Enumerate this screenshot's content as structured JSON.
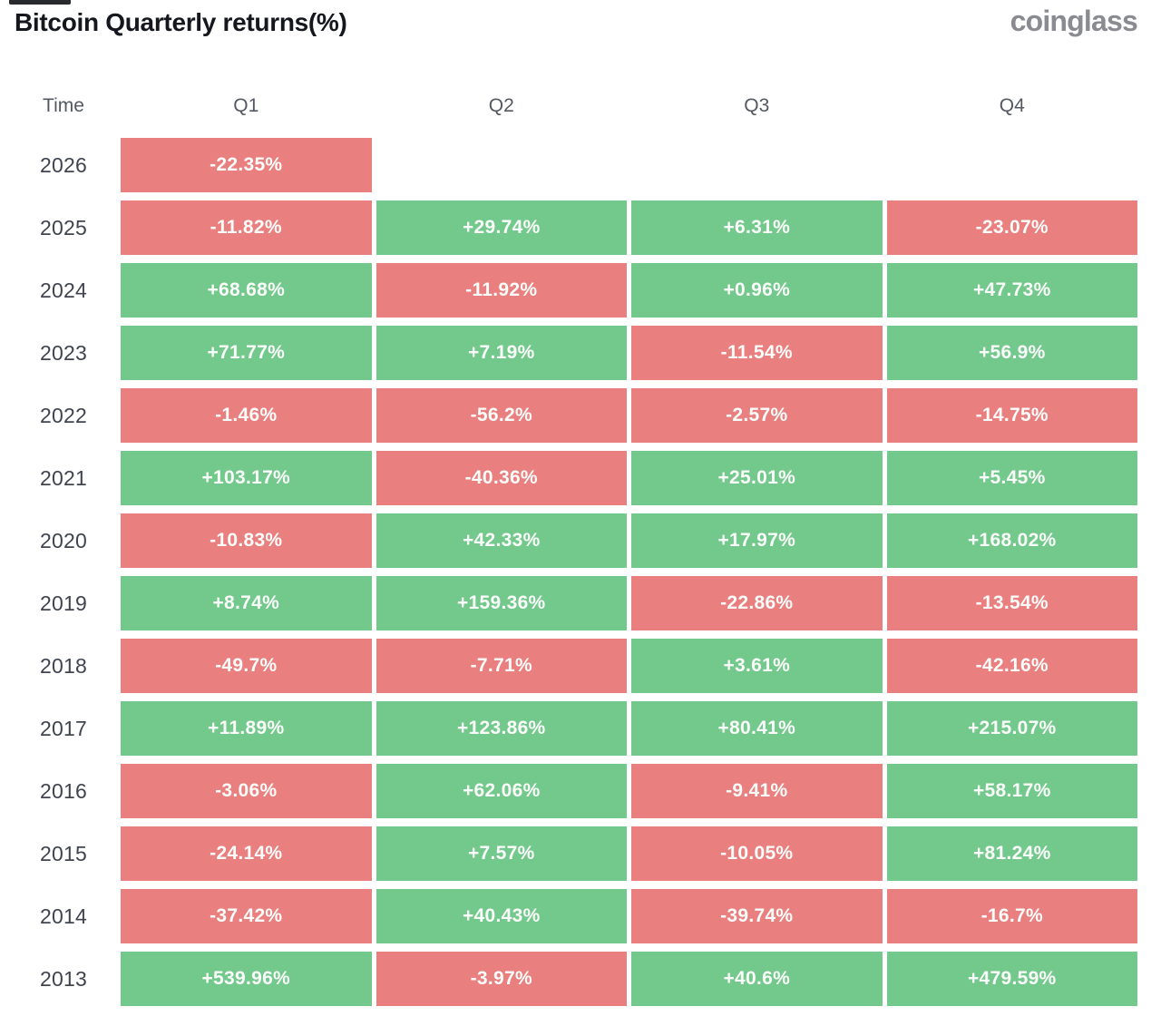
{
  "header": {
    "title": "Bitcoin Quarterly returns(%)",
    "brand": "coinglass"
  },
  "colors": {
    "positive_bg": "#73c98c",
    "negative_bg": "#e97f7f",
    "cell_text": "#fbfdfb",
    "year_text": "#3f4450",
    "header_text": "#535862",
    "title_text": "#15171e",
    "brand_text": "#8a8b90"
  },
  "chart_data": {
    "type": "table",
    "title": "Bitcoin Quarterly returns(%)",
    "columns": [
      "Time",
      "Q1",
      "Q2",
      "Q3",
      "Q4"
    ],
    "legend": "green = positive quarterly return, red = negative quarterly return",
    "rows": [
      {
        "year": "2026",
        "values": [
          "-22.35%",
          null,
          null,
          null
        ]
      },
      {
        "year": "2025",
        "values": [
          "-11.82%",
          "+29.74%",
          "+6.31%",
          "-23.07%"
        ]
      },
      {
        "year": "2024",
        "values": [
          "+68.68%",
          "-11.92%",
          "+0.96%",
          "+47.73%"
        ]
      },
      {
        "year": "2023",
        "values": [
          "+71.77%",
          "+7.19%",
          "-11.54%",
          "+56.9%"
        ]
      },
      {
        "year": "2022",
        "values": [
          "-1.46%",
          "-56.2%",
          "-2.57%",
          "-14.75%"
        ]
      },
      {
        "year": "2021",
        "values": [
          "+103.17%",
          "-40.36%",
          "+25.01%",
          "+5.45%"
        ]
      },
      {
        "year": "2020",
        "values": [
          "-10.83%",
          "+42.33%",
          "+17.97%",
          "+168.02%"
        ]
      },
      {
        "year": "2019",
        "values": [
          "+8.74%",
          "+159.36%",
          "-22.86%",
          "-13.54%"
        ]
      },
      {
        "year": "2018",
        "values": [
          "-49.7%",
          "-7.71%",
          "+3.61%",
          "-42.16%"
        ]
      },
      {
        "year": "2017",
        "values": [
          "+11.89%",
          "+123.86%",
          "+80.41%",
          "+215.07%"
        ]
      },
      {
        "year": "2016",
        "values": [
          "-3.06%",
          "+62.06%",
          "-9.41%",
          "+58.17%"
        ]
      },
      {
        "year": "2015",
        "values": [
          "-24.14%",
          "+7.57%",
          "-10.05%",
          "+81.24%"
        ]
      },
      {
        "year": "2014",
        "values": [
          "-37.42%",
          "+40.43%",
          "-39.74%",
          "-16.7%"
        ]
      },
      {
        "year": "2013",
        "values": [
          "+539.96%",
          "-3.97%",
          "+40.6%",
          "+479.59%"
        ]
      }
    ]
  }
}
